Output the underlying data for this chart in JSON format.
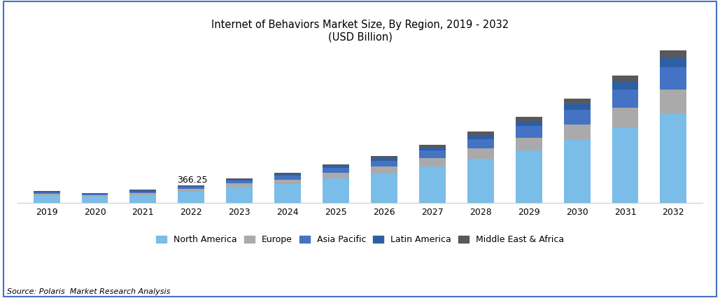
{
  "title_line1": "Internet of Behaviors Market Size, By Region, 2019 - 2032",
  "title_line2": "(USD Billion)",
  "years": [
    2019,
    2020,
    2021,
    2022,
    2023,
    2024,
    2025,
    2026,
    2027,
    2028,
    2029,
    2030,
    2031,
    2032
  ],
  "regions": [
    "North America",
    "Europe",
    "Asia Pacific",
    "Latin America",
    "Middle East & Africa"
  ],
  "colors": [
    "#7ABDE8",
    "#AAAAAA",
    "#4472C4",
    "#2E5FA3",
    "#595959"
  ],
  "data": {
    "North America": [
      150,
      125,
      160,
      230,
      330,
      395,
      510,
      610,
      750,
      910,
      1080,
      1300,
      1560,
      1850
    ],
    "Europe": [
      40,
      33,
      43,
      55,
      70,
      85,
      110,
      135,
      170,
      210,
      260,
      320,
      400,
      490
    ],
    "Asia Pacific": [
      32,
      27,
      36,
      48,
      62,
      78,
      100,
      125,
      158,
      195,
      245,
      300,
      375,
      460
    ],
    "Latin America": [
      18,
      15,
      20,
      20,
      28,
      35,
      45,
      55,
      68,
      85,
      105,
      130,
      160,
      195
    ],
    "Middle East & Africa": [
      13,
      10,
      14,
      13,
      22,
      28,
      35,
      43,
      54,
      67,
      83,
      102,
      127,
      155
    ]
  },
  "annotation_year": 2022,
  "annotation_text": "366.25",
  "source_text": "Source: Polaris  Market Research Analysis",
  "background_color": "#ffffff",
  "border_color": "#4472C4",
  "ylim": [
    0,
    3200
  ],
  "fig_border": true
}
